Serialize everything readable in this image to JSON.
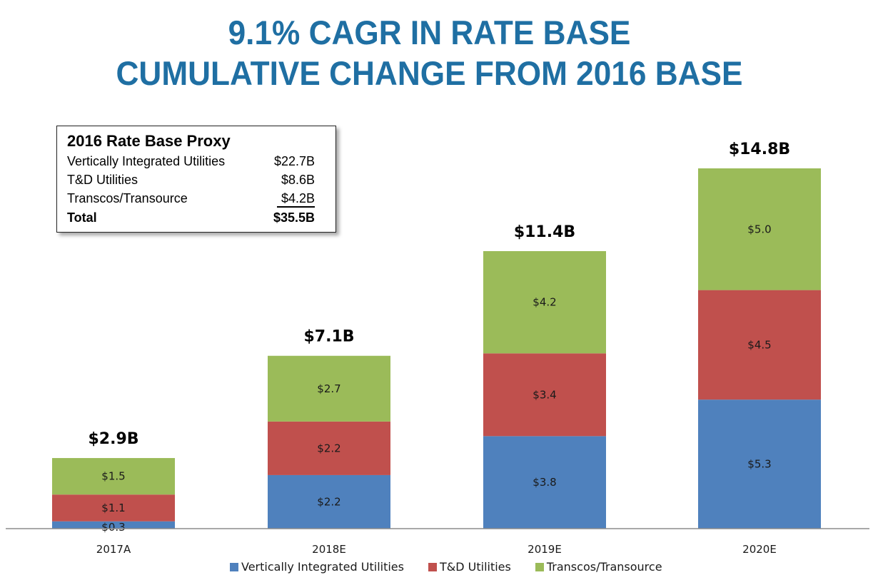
{
  "title_line1": "9.1% CAGR IN RATE BASE",
  "title_line2": "CUMULATIVE CHANGE FROM 2016 BASE",
  "proxy_box": {
    "heading": "2016 Rate Base Proxy",
    "rows": [
      {
        "label": "Vertically Integrated Utilities",
        "value": "$22.7B"
      },
      {
        "label": "T&D Utilities",
        "value": "$8.6B"
      },
      {
        "label": "Transcos/Transource",
        "value": "$4.2B"
      },
      {
        "label": "Total",
        "value": "$35.5B"
      }
    ]
  },
  "colors": {
    "title": "#1f6fa3",
    "vertically_integrated": "#4f81bd",
    "td_utilities": "#c0504d",
    "transcos": "#9bbb59",
    "axis": "#8c8c8c"
  },
  "chart_data": {
    "type": "bar",
    "stacked": true,
    "title": "9.1% CAGR IN RATE BASE / CUMULATIVE CHANGE FROM 2016 BASE",
    "xlabel": "",
    "ylabel": "",
    "ylim": [
      0,
      14.8
    ],
    "grid": false,
    "legend_position": "bottom",
    "categories": [
      "2017A",
      "2018E",
      "2019E",
      "2020E"
    ],
    "series": [
      {
        "name": "Vertically Integrated Utilities",
        "values": [
          0.3,
          2.2,
          3.8,
          5.3
        ],
        "labels": [
          "$0.3",
          "$2.2",
          "$3.8",
          "$5.3"
        ]
      },
      {
        "name": "T&D Utilities",
        "values": [
          1.1,
          2.2,
          3.4,
          4.5
        ],
        "labels": [
          "$1.1",
          "$2.2",
          "$3.4",
          "$4.5"
        ]
      },
      {
        "name": "Transcos/Transource",
        "values": [
          1.5,
          2.7,
          4.2,
          5.0
        ],
        "labels": [
          "$1.5",
          "$2.7",
          "$4.2",
          "$5.0"
        ]
      }
    ],
    "totals": [
      2.9,
      7.1,
      11.4,
      14.8
    ],
    "total_labels": [
      "$2.9B",
      "$7.1B",
      "$11.4B",
      "$14.8B"
    ]
  }
}
